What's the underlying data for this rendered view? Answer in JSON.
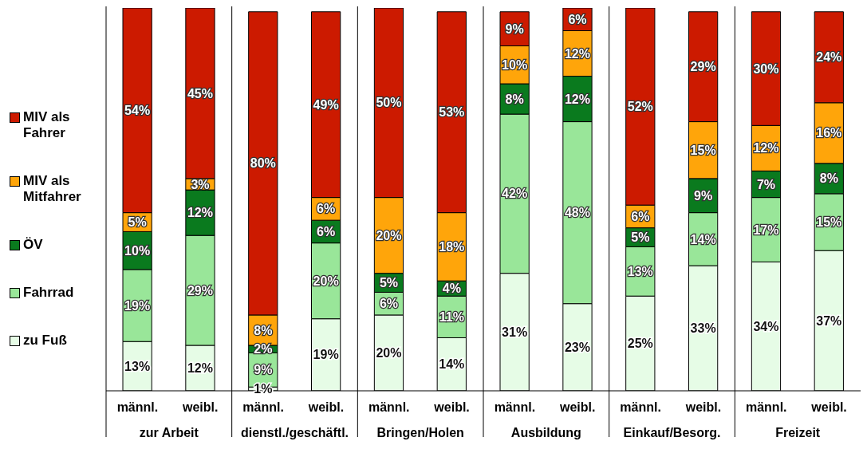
{
  "chart_data": {
    "type": "bar",
    "stacked": true,
    "legend": "left",
    "categories": [
      "männl.",
      "weibl.",
      "männl.",
      "weibl.",
      "männl.",
      "weibl.",
      "männl.",
      "weibl.",
      "männl.",
      "weibl.",
      "männl.",
      "weibl."
    ],
    "annotations": [
      "zur Arbeit",
      "dienstl./geschäftl.",
      "Bringen/Holen",
      "Ausbildung",
      "Einkauf/Besorg.",
      "Freizeit"
    ],
    "series": [
      {
        "name": "zu Fuß",
        "color": "#e6fce6",
        "values": [
          13,
          12,
          1,
          19,
          20,
          14,
          31,
          23,
          25,
          33,
          34,
          37
        ],
        "value_labels": [
          "13%",
          "12%",
          "1%",
          "19%",
          "20%",
          "14%",
          "31%",
          "23%",
          "25%",
          "33%",
          "34%",
          "37%"
        ]
      },
      {
        "name": "Fahrrad",
        "color": "#99e699",
        "values": [
          19,
          29,
          9,
          20,
          6,
          11,
          42,
          48,
          13,
          14,
          17,
          15
        ],
        "value_labels": [
          "19%",
          "29%",
          "9%",
          "20%",
          "6%",
          "11%",
          "42%",
          "48%",
          "13%",
          "14%",
          "17%",
          "15%"
        ]
      },
      {
        "name": "ÖV",
        "color": "#0a7a1e",
        "values": [
          10,
          12,
          2,
          6,
          5,
          4,
          8,
          12,
          5,
          9,
          7,
          8
        ],
        "value_labels": [
          "10%",
          "12%",
          "2%",
          "6%",
          "5%",
          "4%",
          "8%",
          "12%",
          "5%",
          "9%",
          "7%",
          "8%"
        ]
      },
      {
        "name": "MIV als Mitfahrer",
        "color": "#ffa50a",
        "values": [
          5,
          3,
          8,
          6,
          20,
          18,
          10,
          12,
          6,
          15,
          12,
          16
        ],
        "value_labels": [
          "5%",
          "3%",
          "8%",
          "6%",
          "20%",
          "18%",
          "10%",
          "12%",
          "6%",
          "15%",
          "12%",
          "16%"
        ]
      },
      {
        "name": "MIV als Fahrer",
        "color": "#cc1a00",
        "values": [
          54,
          45,
          80,
          49,
          50,
          53,
          9,
          6,
          52,
          29,
          30,
          24
        ],
        "value_labels": [
          "54%",
          "45%",
          "80%",
          "49%",
          "50%",
          "53%",
          "9%",
          "6%",
          "52%",
          "29%",
          "30%",
          "24%"
        ]
      }
    ]
  }
}
